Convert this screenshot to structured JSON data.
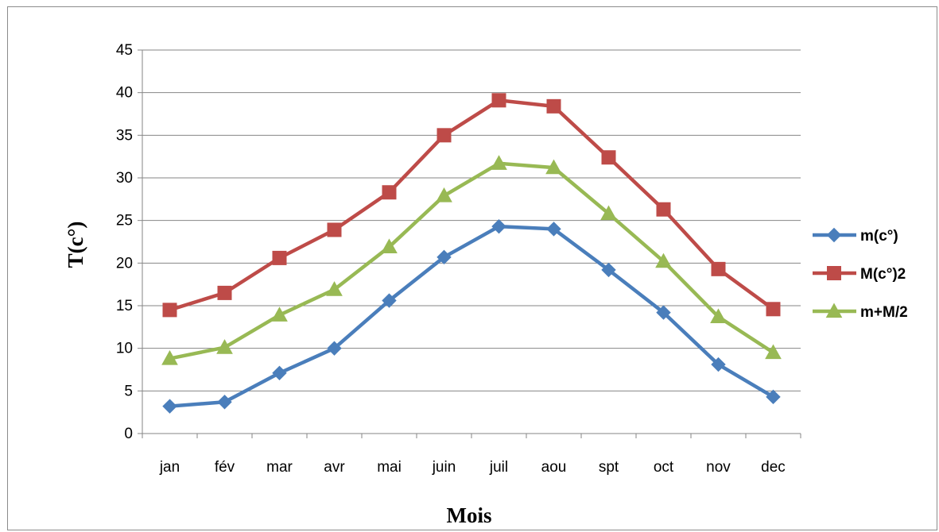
{
  "chart_data": {
    "type": "line",
    "categories": [
      "jan",
      "fév",
      "mar",
      "avr",
      "mai",
      "juin",
      "juil",
      "aou",
      "spt",
      "oct",
      "nov",
      "dec"
    ],
    "series": [
      {
        "name": "m(c°)",
        "color": "#4a7ebb",
        "marker": "diamond",
        "values": [
          3.2,
          3.7,
          7.1,
          10.0,
          15.6,
          20.7,
          24.3,
          24.0,
          19.2,
          14.2,
          8.1,
          4.3
        ]
      },
      {
        "name": "M(c°)2",
        "color": "#be4b48",
        "marker": "square",
        "values": [
          14.5,
          16.5,
          20.6,
          23.9,
          28.3,
          35.0,
          39.1,
          38.4,
          32.4,
          26.3,
          19.3,
          14.6
        ]
      },
      {
        "name": "m+M/2",
        "color": "#98b954",
        "marker": "triangle",
        "values": [
          8.8,
          10.1,
          13.9,
          16.9,
          21.9,
          27.9,
          31.7,
          31.2,
          25.8,
          20.2,
          13.7,
          9.5
        ]
      }
    ],
    "xlabel": "Mois",
    "ylabel": "T(c°)",
    "ylim": [
      0,
      45
    ],
    "yticks": [
      "0",
      "5",
      "10",
      "15",
      "20",
      "25",
      "30",
      "35",
      "40",
      "45"
    ],
    "grid": true,
    "legend": "right"
  }
}
